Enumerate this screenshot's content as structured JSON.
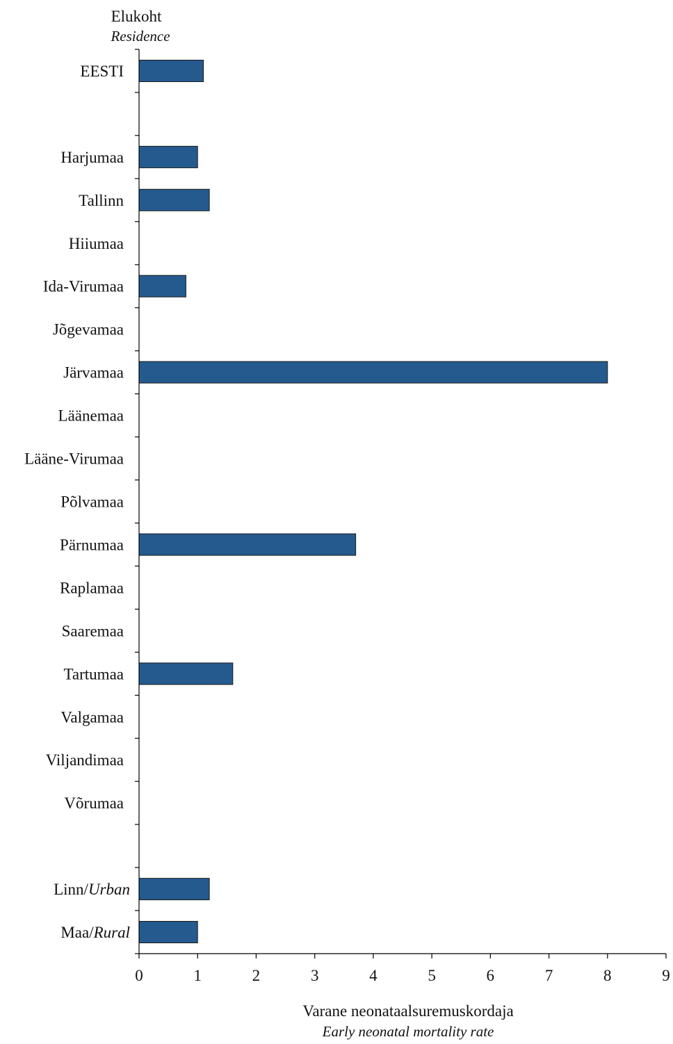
{
  "chart_data": {
    "type": "bar",
    "orientation": "horizontal",
    "ylabel": "Elukoht",
    "ylabel_en": "Residence",
    "xlabel": "Varane neonataalsuremuskordaja",
    "xlabel_en": "Early neonatal mortality rate",
    "xlim": [
      0,
      9
    ],
    "xticks": [
      "0",
      "1",
      "2",
      "3",
      "4",
      "5",
      "6",
      "7",
      "8",
      "9"
    ],
    "grid": false,
    "bar_color": "#245a8e",
    "categories": [
      {
        "label": "EESTI",
        "value": 1.1
      },
      {
        "label": "",
        "value": null
      },
      {
        "label": "Harjumaa",
        "value": 1.0
      },
      {
        "label": "Tallinn",
        "value": 1.2
      },
      {
        "label": "Hiiumaa",
        "value": null
      },
      {
        "label": "Ida-Virumaa",
        "value": 0.8
      },
      {
        "label": "Jõgevamaa",
        "value": null
      },
      {
        "label": "Järvamaa",
        "value": 8.0
      },
      {
        "label": "Läänemaa",
        "value": null
      },
      {
        "label": "Lääne-Virumaa",
        "value": null
      },
      {
        "label": "Põlvamaa",
        "value": null
      },
      {
        "label": "Pärnumaa",
        "value": 3.7
      },
      {
        "label": "Raplamaa",
        "value": null
      },
      {
        "label": "Saaremaa",
        "value": null
      },
      {
        "label": "Tartumaa",
        "value": 1.6
      },
      {
        "label": "Valgamaa",
        "value": null
      },
      {
        "label": "Viljandimaa",
        "value": null
      },
      {
        "label": "Võrumaa",
        "value": null
      },
      {
        "label": "",
        "value": null
      },
      {
        "label": "Linn/",
        "label_it": "Urban",
        "value": 1.2
      },
      {
        "label": "Maa/",
        "label_it": "Rural",
        "value": 1.0
      }
    ]
  }
}
